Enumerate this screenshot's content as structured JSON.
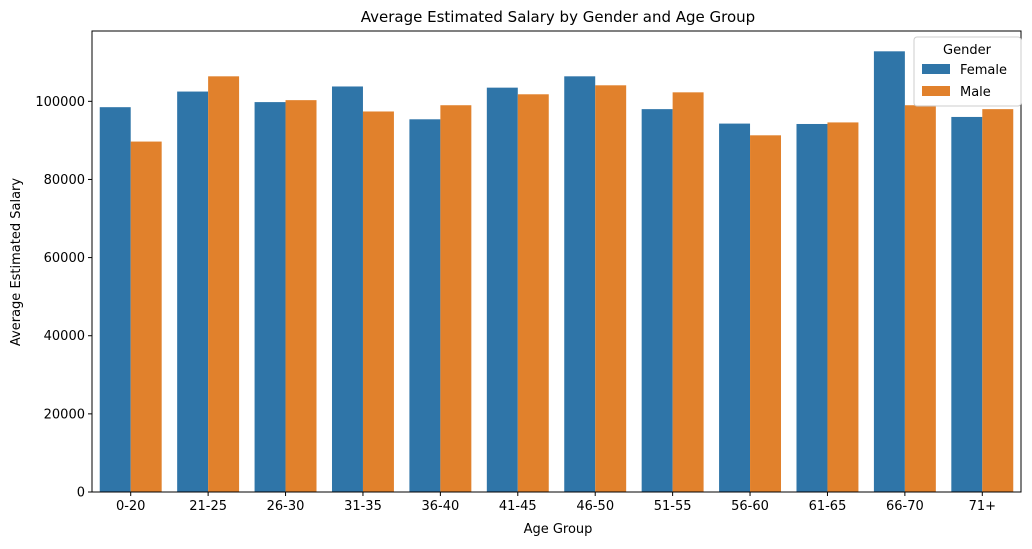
{
  "chart_data": {
    "type": "bar",
    "title": "Average Estimated Salary by Gender and Age Group",
    "xlabel": "Age Group",
    "ylabel": "Average Estimated Salary",
    "categories": [
      "0-20",
      "21-25",
      "26-30",
      "31-35",
      "36-40",
      "41-45",
      "46-50",
      "51-55",
      "56-60",
      "61-65",
      "66-70",
      "71+"
    ],
    "series": [
      {
        "name": "Female",
        "color": "#2f75a8",
        "values": [
          98500,
          102500,
          99800,
          103800,
          95400,
          103500,
          106400,
          98000,
          94300,
          94200,
          112800,
          96000
        ]
      },
      {
        "name": "Male",
        "color": "#e1812c",
        "values": [
          89700,
          106400,
          100300,
          97400,
          99000,
          101800,
          104100,
          102300,
          91300,
          94600,
          99000,
          98000
        ]
      }
    ],
    "ylim": [
      0,
      118000
    ],
    "yticks": [
      0,
      20000,
      40000,
      60000,
      80000,
      100000
    ],
    "grid": false,
    "legend": {
      "title": "Gender",
      "position": "top-right"
    }
  }
}
